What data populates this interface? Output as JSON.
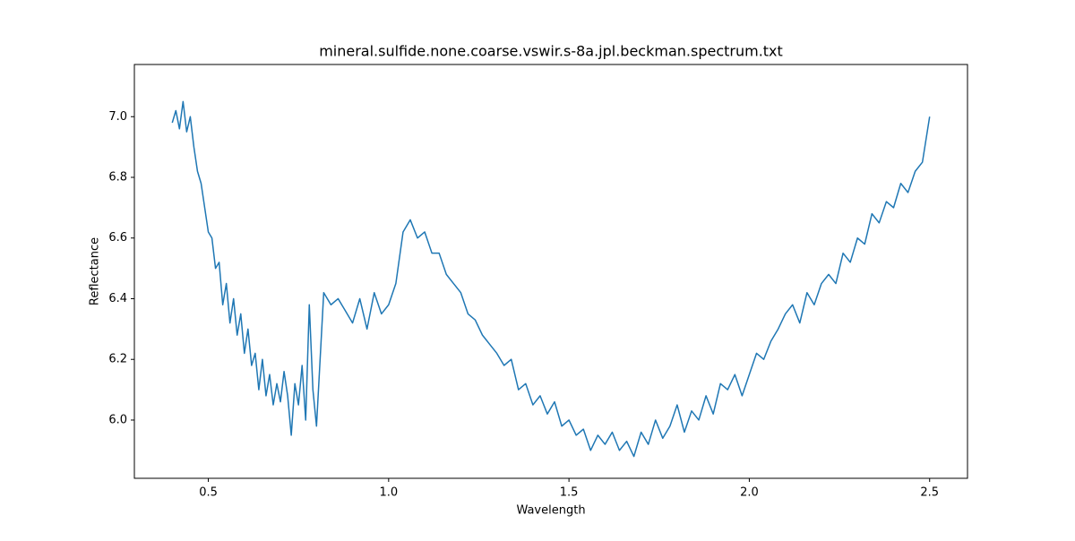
{
  "chart_data": {
    "type": "line",
    "title": "mineral.sulfide.none.coarse.vswir.s-8a.jpl.beckman.spectrum.txt",
    "x_label": "Wavelength",
    "y_label": "Reflectance",
    "x": [
      0.4,
      0.41,
      0.42,
      0.43,
      0.44,
      0.45,
      0.46,
      0.47,
      0.48,
      0.49,
      0.5,
      0.51,
      0.52,
      0.53,
      0.54,
      0.55,
      0.56,
      0.57,
      0.58,
      0.59,
      0.6,
      0.61,
      0.62,
      0.63,
      0.64,
      0.65,
      0.66,
      0.67,
      0.68,
      0.69,
      0.7,
      0.71,
      0.72,
      0.73,
      0.74,
      0.75,
      0.76,
      0.77,
      0.78,
      0.79,
      0.8,
      0.82,
      0.84,
      0.86,
      0.88,
      0.9,
      0.92,
      0.94,
      0.96,
      0.98,
      1.0,
      1.02,
      1.04,
      1.06,
      1.08,
      1.1,
      1.12,
      1.14,
      1.16,
      1.18,
      1.2,
      1.22,
      1.24,
      1.26,
      1.28,
      1.3,
      1.32,
      1.34,
      1.36,
      1.38,
      1.4,
      1.42,
      1.44,
      1.46,
      1.48,
      1.5,
      1.52,
      1.54,
      1.56,
      1.58,
      1.6,
      1.62,
      1.64,
      1.66,
      1.68,
      1.7,
      1.72,
      1.74,
      1.76,
      1.78,
      1.8,
      1.82,
      1.84,
      1.86,
      1.88,
      1.9,
      1.92,
      1.94,
      1.96,
      1.98,
      2.0,
      2.02,
      2.04,
      2.06,
      2.08,
      2.1,
      2.12,
      2.14,
      2.16,
      2.18,
      2.2,
      2.22,
      2.24,
      2.26,
      2.28,
      2.3,
      2.32,
      2.34,
      2.36,
      2.38,
      2.4,
      2.42,
      2.44,
      2.46,
      2.48,
      2.5
    ],
    "series": [
      {
        "name": "Reflectance",
        "color": "#1f77b4",
        "values": [
          6.98,
          7.02,
          6.96,
          7.05,
          6.95,
          7.0,
          6.9,
          6.82,
          6.78,
          6.7,
          6.62,
          6.6,
          6.5,
          6.52,
          6.38,
          6.45,
          6.32,
          6.4,
          6.28,
          6.35,
          6.22,
          6.3,
          6.18,
          6.22,
          6.1,
          6.2,
          6.08,
          6.15,
          6.05,
          6.12,
          6.06,
          6.16,
          6.08,
          5.95,
          6.12,
          6.05,
          6.18,
          6.0,
          6.38,
          6.1,
          5.98,
          6.42,
          6.38,
          6.4,
          6.36,
          6.32,
          6.4,
          6.3,
          6.42,
          6.35,
          6.38,
          6.45,
          6.62,
          6.66,
          6.6,
          6.62,
          6.55,
          6.55,
          6.48,
          6.45,
          6.42,
          6.35,
          6.33,
          6.28,
          6.25,
          6.22,
          6.18,
          6.2,
          6.1,
          6.12,
          6.05,
          6.08,
          6.02,
          6.06,
          5.98,
          6.0,
          5.95,
          5.97,
          5.9,
          5.95,
          5.92,
          5.96,
          5.9,
          5.93,
          5.88,
          5.96,
          5.92,
          6.0,
          5.94,
          5.98,
          6.05,
          5.96,
          6.03,
          6.0,
          6.08,
          6.02,
          6.12,
          6.1,
          6.15,
          6.08,
          6.15,
          6.22,
          6.2,
          6.26,
          6.3,
          6.35,
          6.38,
          6.32,
          6.42,
          6.38,
          6.45,
          6.48,
          6.45,
          6.55,
          6.52,
          6.6,
          6.58,
          6.68,
          6.65,
          6.72,
          6.7,
          6.78,
          6.75,
          6.82,
          6.85,
          7.0
        ]
      }
    ],
    "xlim": [
      0.295,
      2.605
    ],
    "ylim": [
      5.808,
      7.172
    ],
    "xticks": [
      0.5,
      {
        "value": 1,
        "label": "1.0"
      },
      1.5,
      {
        "value": 2,
        "label": "2.0"
      },
      2.5
    ],
    "yticks": [
      {
        "value": 6,
        "label": "6.0"
      },
      6.2,
      6.4,
      6.6,
      6.8,
      {
        "value": 7,
        "label": "7.0"
      }
    ],
    "grid": false
  }
}
